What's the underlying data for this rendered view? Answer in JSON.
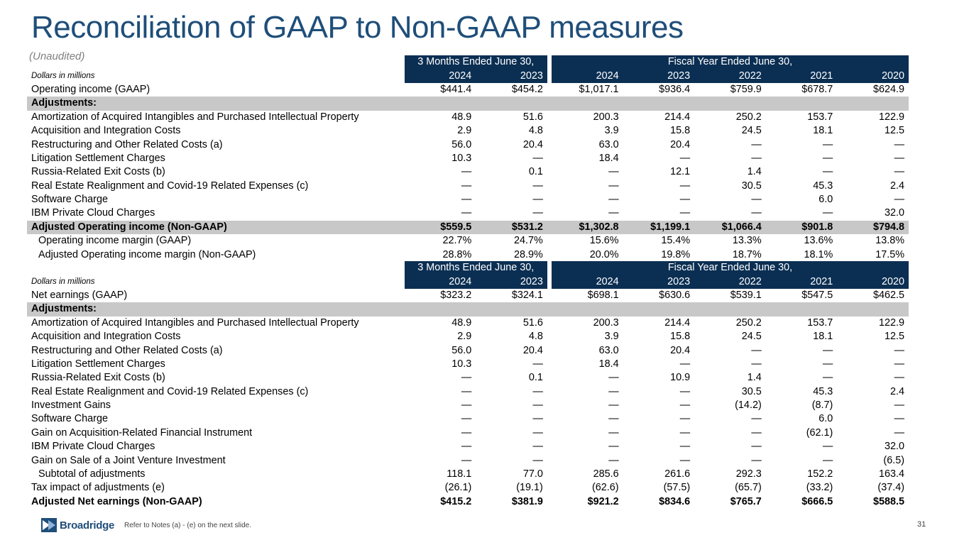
{
  "title": "Reconciliation of GAAP to Non-GAAP measures",
  "subtitle": "(Unaudited)",
  "header": {
    "dollars_label": "Dollars in millions",
    "group_quarter": "3 Months Ended June 30,",
    "group_fiscal": "Fiscal Year Ended June 30,",
    "years": [
      "2024",
      "2023",
      "2024",
      "2023",
      "2022",
      "2021",
      "2020"
    ]
  },
  "table1": [
    {
      "label": "Operating income (GAAP)",
      "style": "normal",
      "values": [
        "$441.4",
        "$454.2",
        "$1,017.1",
        "$936.4",
        "$759.9",
        "$678.7",
        "$624.9"
      ]
    },
    {
      "label": "Adjustments:",
      "style": "gray",
      "values": [
        "",
        "",
        "",
        "",
        "",
        "",
        ""
      ]
    },
    {
      "label": "Amortization of Acquired Intangibles and Purchased Intellectual Property",
      "style": "normal",
      "values": [
        "48.9",
        "51.6",
        "200.3",
        "214.4",
        "250.2",
        "153.7",
        "122.9"
      ]
    },
    {
      "label": "Acquisition and Integration Costs",
      "style": "normal",
      "values": [
        "2.9",
        "4.8",
        "3.9",
        "15.8",
        "24.5",
        "18.1",
        "12.5"
      ]
    },
    {
      "label": "Restructuring and Other Related Costs (a)",
      "style": "normal",
      "values": [
        "56.0",
        "20.4",
        "63.0",
        "20.4",
        "—",
        "—",
        "—"
      ]
    },
    {
      "label": "Litigation Settlement Charges",
      "style": "normal",
      "values": [
        "10.3",
        "—",
        "18.4",
        "—",
        "—",
        "—",
        "—"
      ]
    },
    {
      "label": "Russia-Related Exit Costs (b)",
      "style": "normal",
      "values": [
        "—",
        "0.1",
        "—",
        "12.1",
        "1.4",
        "—",
        "—"
      ]
    },
    {
      "label": "Real Estate Realignment and Covid-19 Related Expenses (c)",
      "style": "normal",
      "values": [
        "—",
        "—",
        "—",
        "—",
        "30.5",
        "45.3",
        "2.4"
      ]
    },
    {
      "label": "Software Charge",
      "style": "normal",
      "values": [
        "—",
        "—",
        "—",
        "—",
        "—",
        "6.0",
        "—"
      ]
    },
    {
      "label": "IBM Private Cloud Charges",
      "style": "normal",
      "values": [
        "—",
        "—",
        "—",
        "—",
        "—",
        "—",
        "32.0"
      ]
    },
    {
      "label": "Adjusted Operating income (Non-GAAP)",
      "style": "gray",
      "values": [
        "$559.5",
        "$531.2",
        "$1,302.8",
        "$1,199.1",
        "$1,066.4",
        "$901.8",
        "$794.8"
      ]
    },
    {
      "label": "Operating income margin (GAAP)",
      "style": "indent",
      "values": [
        "22.7%",
        "24.7%",
        "15.6%",
        "15.4%",
        "13.3%",
        "13.6%",
        "13.8%"
      ]
    },
    {
      "label": "Adjusted Operating income margin (Non-GAAP)",
      "style": "indent",
      "values": [
        "28.8%",
        "28.9%",
        "20.0%",
        "19.8%",
        "18.7%",
        "18.1%",
        "17.5%"
      ]
    }
  ],
  "table2": [
    {
      "label": "Net earnings (GAAP)",
      "style": "normal",
      "values": [
        "$323.2",
        "$324.1",
        "$698.1",
        "$630.6",
        "$539.1",
        "$547.5",
        "$462.5"
      ]
    },
    {
      "label": "Adjustments:",
      "style": "gray",
      "values": [
        "",
        "",
        "",
        "",
        "",
        "",
        ""
      ]
    },
    {
      "label": "Amortization of Acquired Intangibles and Purchased Intellectual Property",
      "style": "normal",
      "values": [
        "48.9",
        "51.6",
        "200.3",
        "214.4",
        "250.2",
        "153.7",
        "122.9"
      ]
    },
    {
      "label": "Acquisition and Integration Costs",
      "style": "normal",
      "values": [
        "2.9",
        "4.8",
        "3.9",
        "15.8",
        "24.5",
        "18.1",
        "12.5"
      ]
    },
    {
      "label": "Restructuring and Other Related Costs (a)",
      "style": "normal",
      "values": [
        "56.0",
        "20.4",
        "63.0",
        "20.4",
        "—",
        "—",
        "—"
      ]
    },
    {
      "label": "Litigation Settlement Charges",
      "style": "normal",
      "values": [
        "10.3",
        "—",
        "18.4",
        "—",
        "—",
        "—",
        "—"
      ]
    },
    {
      "label": "Russia-Related Exit Costs (b)",
      "style": "normal",
      "values": [
        "—",
        "0.1",
        "—",
        "10.9",
        "1.4",
        "—",
        "—"
      ]
    },
    {
      "label": "Real Estate Realignment and Covid-19 Related Expenses (c)",
      "style": "normal",
      "values": [
        "—",
        "—",
        "—",
        "—",
        "30.5",
        "45.3",
        "2.4"
      ]
    },
    {
      "label": "Investment Gains",
      "style": "normal",
      "values": [
        "—",
        "—",
        "—",
        "—",
        "(14.2)",
        "(8.7)",
        "—"
      ]
    },
    {
      "label": "Software Charge",
      "style": "normal",
      "values": [
        "—",
        "—",
        "—",
        "—",
        "—",
        "6.0",
        "—"
      ]
    },
    {
      "label": "Gain on Acquisition-Related Financial Instrument",
      "style": "normal",
      "values": [
        "—",
        "—",
        "—",
        "—",
        "—",
        "(62.1)",
        "—"
      ]
    },
    {
      "label": "IBM Private Cloud Charges",
      "style": "normal",
      "values": [
        "—",
        "—",
        "—",
        "—",
        "—",
        "—",
        "32.0"
      ]
    },
    {
      "label": "Gain on Sale of a Joint Venture Investment",
      "style": "normal",
      "values": [
        "—",
        "—",
        "—",
        "—",
        "—",
        "—",
        "(6.5)"
      ]
    },
    {
      "label": "Subtotal of adjustments",
      "style": "indent",
      "values": [
        "118.1",
        "77.0",
        "285.6",
        "261.6",
        "292.3",
        "152.2",
        "163.4"
      ]
    },
    {
      "label": "Tax impact of adjustments (e)",
      "style": "normal",
      "values": [
        "(26.1)",
        "(19.1)",
        "(62.6)",
        "(57.5)",
        "(65.7)",
        "(33.2)",
        "(37.4)"
      ]
    },
    {
      "label": "Adjusted Net earnings (Non-GAAP)",
      "style": "bold",
      "values": [
        "$415.2",
        "$381.9",
        "$921.2",
        "$834.6",
        "$765.7",
        "$666.5",
        "$588.5"
      ]
    }
  ],
  "footer": {
    "logo_text": "Broadridge",
    "note": "Refer to Notes (a) - (e) on the next slide.",
    "page_number": "31"
  }
}
